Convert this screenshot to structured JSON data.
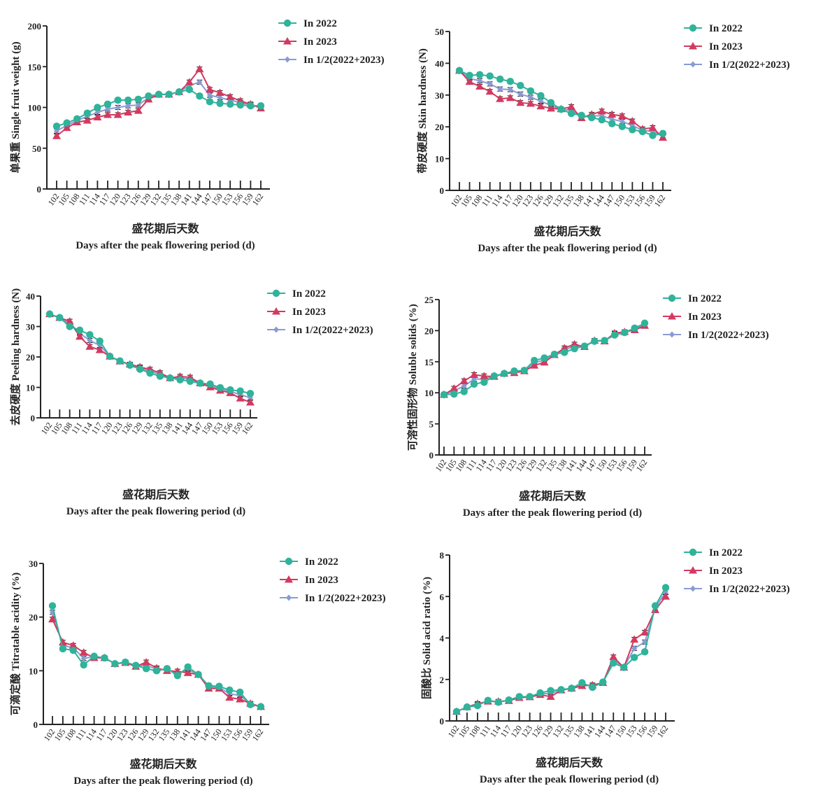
{
  "figure": {
    "xlabel_cn": "盛花期后天数",
    "xlabel_en": "Days after the peak flowering period (d)",
    "legend": [
      "In 2022",
      "In 2023",
      "In 1/2(2022+2023)"
    ],
    "colors": {
      "2022": "#2fb39a",
      "2023": "#d23a5f",
      "avg": "#8a9bd4"
    }
  },
  "chart_data": [
    {
      "type": "line",
      "id": "single-fruit-weight",
      "ylabel_cn": "单果重",
      "ylabel_en": "Single fruit weight (g)",
      "xlabel": "Days after the peak flowering period (d)",
      "x": [
        102,
        105,
        108,
        111,
        114,
        117,
        120,
        123,
        126,
        129,
        132,
        135,
        138,
        141,
        144,
        147,
        150,
        153,
        156,
        159,
        162
      ],
      "ylim": [
        0,
        200
      ],
      "yticks": [
        0,
        50,
        100,
        150,
        200
      ],
      "legend_position": "top-right",
      "series": [
        {
          "name": "In 2022",
          "marker": "circle",
          "values": [
            77,
            81,
            86,
            93,
            100,
            104,
            109,
            109,
            110,
            114,
            116,
            116,
            119,
            122,
            114,
            107,
            105,
            104,
            103,
            102,
            102
          ]
        },
        {
          "name": "In 2023",
          "marker": "triangle",
          "values": [
            65,
            75,
            82,
            84,
            88,
            91,
            91,
            94,
            96,
            110,
            116,
            116,
            119,
            131,
            147,
            122,
            118,
            113,
            108,
            104,
            99
          ]
        },
        {
          "name": "In 1/2(2022+2023)",
          "marker": "diamond",
          "values": [
            71,
            78,
            84,
            89,
            94,
            98,
            100,
            102,
            103,
            112,
            116,
            116,
            119,
            127,
            131,
            115,
            112,
            109,
            106,
            103,
            101
          ]
        }
      ]
    },
    {
      "type": "line",
      "id": "skin-hardness",
      "ylabel_cn": "带皮硬度",
      "ylabel_en": "Skin hardness (N)",
      "xlabel": "Days after the peak flowering period (d)",
      "x": [
        102,
        105,
        108,
        111,
        114,
        117,
        120,
        123,
        126,
        129,
        132,
        135,
        138,
        141,
        144,
        147,
        150,
        153,
        156,
        159,
        162
      ],
      "ylim": [
        0,
        50
      ],
      "yticks": [
        0,
        10,
        20,
        30,
        40,
        50
      ],
      "legend_position": "top-right",
      "series": [
        {
          "name": "In 2022",
          "marker": "circle",
          "values": [
            37.7,
            36.2,
            36.4,
            36.0,
            35.0,
            34.3,
            33.0,
            31.3,
            29.8,
            27.6,
            25.5,
            24.2,
            23.6,
            22.9,
            22.2,
            21.0,
            20.1,
            19.1,
            18.5,
            17.3,
            17.9
          ]
        },
        {
          "name": "In 2023",
          "marker": "triangle",
          "values": [
            37.7,
            34.2,
            32.7,
            31.1,
            28.8,
            29.1,
            27.6,
            27.3,
            26.5,
            25.8,
            25.6,
            26.3,
            22.8,
            23.9,
            24.9,
            23.9,
            23.4,
            21.8,
            19.3,
            19.7,
            16.6
          ]
        },
        {
          "name": "In 1/2(2022+2023)",
          "marker": "diamond",
          "values": [
            37.7,
            35.2,
            34.5,
            33.5,
            31.9,
            31.7,
            30.3,
            29.3,
            28.1,
            26.7,
            25.5,
            25.2,
            23.2,
            23.4,
            23.5,
            22.4,
            21.7,
            20.4,
            18.9,
            18.5,
            17.2
          ]
        }
      ]
    },
    {
      "type": "line",
      "id": "peeling-hardness",
      "ylabel_cn": "去皮硬度",
      "ylabel_en": "Peeling hardness (N)",
      "xlabel": "Days after the peak flowering period (d)",
      "x": [
        102,
        105,
        108,
        111,
        114,
        117,
        120,
        123,
        126,
        129,
        132,
        135,
        138,
        141,
        144,
        147,
        150,
        153,
        156,
        159,
        162
      ],
      "ylim": [
        0,
        40
      ],
      "yticks": [
        0,
        10,
        20,
        30,
        40
      ],
      "legend_position": "top-right",
      "series": [
        {
          "name": "In 2022",
          "marker": "circle",
          "values": [
            34.1,
            32.9,
            30.0,
            28.8,
            27.3,
            25.2,
            20.2,
            18.7,
            17.3,
            16.0,
            14.7,
            13.7,
            13.1,
            12.5,
            12.0,
            11.4,
            11.1,
            9.9,
            9.2,
            8.8,
            8.0
          ]
        },
        {
          "name": "In 2023",
          "marker": "triangle",
          "values": [
            34.1,
            32.9,
            31.7,
            26.7,
            23.4,
            22.3,
            20.2,
            18.6,
            17.6,
            16.7,
            15.9,
            14.8,
            13.1,
            13.6,
            13.3,
            11.4,
            10.1,
            9.0,
            8.2,
            6.4,
            5.1
          ]
        },
        {
          "name": "In 1/2(2022+2023)",
          "marker": "diamond",
          "values": [
            34.1,
            32.9,
            30.9,
            27.8,
            25.4,
            23.8,
            20.2,
            18.7,
            17.5,
            16.4,
            15.3,
            14.3,
            13.1,
            13.1,
            12.7,
            11.4,
            10.6,
            9.5,
            8.7,
            7.6,
            6.6
          ]
        }
      ]
    },
    {
      "type": "line",
      "id": "soluble-solids",
      "ylabel_cn": "可溶性固形物",
      "ylabel_en": "Soluble solids (%)",
      "xlabel": "Days after the peak flowering period (d)",
      "x": [
        102,
        105,
        108,
        111,
        114,
        117,
        120,
        123,
        126,
        129,
        132,
        135,
        138,
        141,
        144,
        147,
        150,
        153,
        156,
        159,
        162
      ],
      "ylim": [
        0,
        25
      ],
      "yticks": [
        0,
        5,
        10,
        15,
        20,
        25
      ],
      "legend_position": "top-right",
      "series": [
        {
          "name": "In 2022",
          "marker": "circle",
          "values": [
            9.7,
            9.8,
            10.2,
            11.4,
            11.7,
            12.7,
            13.1,
            13.5,
            13.6,
            15.2,
            15.6,
            16.2,
            16.5,
            17.1,
            17.5,
            18.3,
            18.4,
            19.3,
            19.7,
            20.4,
            21.2
          ]
        },
        {
          "name": "In 2023",
          "marker": "triangle",
          "values": [
            9.7,
            10.7,
            11.9,
            12.9,
            12.7,
            12.6,
            13.1,
            13.2,
            13.5,
            14.4,
            14.9,
            16.1,
            17.2,
            17.8,
            17.4,
            18.4,
            18.3,
            19.6,
            19.8,
            20.1,
            20.8
          ]
        },
        {
          "name": "In 1/2(2022+2023)",
          "marker": "diamond",
          "values": [
            9.7,
            10.3,
            11.1,
            12.2,
            12.2,
            12.7,
            13.1,
            13.4,
            13.6,
            14.8,
            15.3,
            16.2,
            16.9,
            17.5,
            17.5,
            18.4,
            18.4,
            19.5,
            19.8,
            20.3,
            21.0
          ]
        }
      ]
    },
    {
      "type": "line",
      "id": "titratable-acidity",
      "ylabel_cn": "可滴定酸",
      "ylabel_en": "Titratable acidity (%)",
      "xlabel": "Days after the peak flowering period (d)",
      "x": [
        102,
        105,
        108,
        111,
        114,
        117,
        120,
        123,
        126,
        129,
        132,
        135,
        138,
        141,
        144,
        147,
        150,
        153,
        156,
        159,
        162
      ],
      "ylim": [
        0,
        30
      ],
      "yticks": [
        0,
        10,
        20,
        30
      ],
      "legend_position": "top-right",
      "series": [
        {
          "name": "In 2022",
          "marker": "circle",
          "values": [
            22.1,
            14.1,
            13.8,
            11.1,
            12.7,
            12.4,
            11.3,
            11.6,
            11.0,
            10.4,
            10.0,
            10.4,
            9.1,
            10.7,
            9.3,
            7.2,
            7.1,
            6.4,
            6.0,
            3.7,
            3.3
          ]
        },
        {
          "name": "In 2023",
          "marker": "triangle",
          "values": [
            19.6,
            15.3,
            14.7,
            13.4,
            12.4,
            12.4,
            11.3,
            11.5,
            10.8,
            11.6,
            10.5,
            10.0,
            9.9,
            9.6,
            9.3,
            6.7,
            6.7,
            5.0,
            4.7,
            3.9,
            3.3
          ]
        },
        {
          "name": "In 1/2(2022+2023)",
          "marker": "diamond",
          "values": [
            20.9,
            14.7,
            14.3,
            12.3,
            12.6,
            12.4,
            11.3,
            11.6,
            10.9,
            11.0,
            10.3,
            10.2,
            9.5,
            10.2,
            9.3,
            7.0,
            6.9,
            5.7,
            5.4,
            3.8,
            3.3
          ]
        }
      ]
    },
    {
      "type": "line",
      "id": "solid-acid-ratio",
      "ylabel_cn": "固酸比",
      "ylabel_en": "Solid acid ratio (%)",
      "xlabel": "Days after the peak flowering period (d)",
      "x": [
        102,
        105,
        108,
        111,
        114,
        117,
        120,
        123,
        126,
        129,
        132,
        135,
        138,
        141,
        144,
        147,
        150,
        153,
        156,
        159,
        162
      ],
      "ylim": [
        0,
        8
      ],
      "yticks": [
        0,
        2,
        4,
        6,
        8
      ],
      "legend_position": "top-right",
      "series": [
        {
          "name": "In 2022",
          "marker": "circle",
          "values": [
            0.45,
            0.67,
            0.74,
            0.99,
            0.9,
            1.01,
            1.17,
            1.17,
            1.35,
            1.46,
            1.51,
            1.57,
            1.84,
            1.62,
            1.87,
            2.79,
            2.58,
            3.06,
            3.33,
            5.55,
            6.43
          ]
        },
        {
          "name": "In 2023",
          "marker": "triangle",
          "values": [
            0.45,
            0.67,
            0.83,
            0.94,
            0.94,
            0.97,
            1.12,
            1.15,
            1.26,
            1.17,
            1.48,
            1.57,
            1.69,
            1.73,
            1.84,
            3.08,
            2.58,
            3.93,
            4.27,
            5.35,
            6.0
          ]
        },
        {
          "name": "In 1/2(2022+2023)",
          "marker": "diamond",
          "values": [
            0.45,
            0.67,
            0.79,
            0.97,
            0.92,
            0.99,
            1.15,
            1.16,
            1.31,
            1.32,
            1.5,
            1.57,
            1.77,
            1.68,
            1.86,
            2.94,
            2.58,
            3.5,
            3.8,
            5.45,
            6.22
          ]
        }
      ]
    }
  ]
}
